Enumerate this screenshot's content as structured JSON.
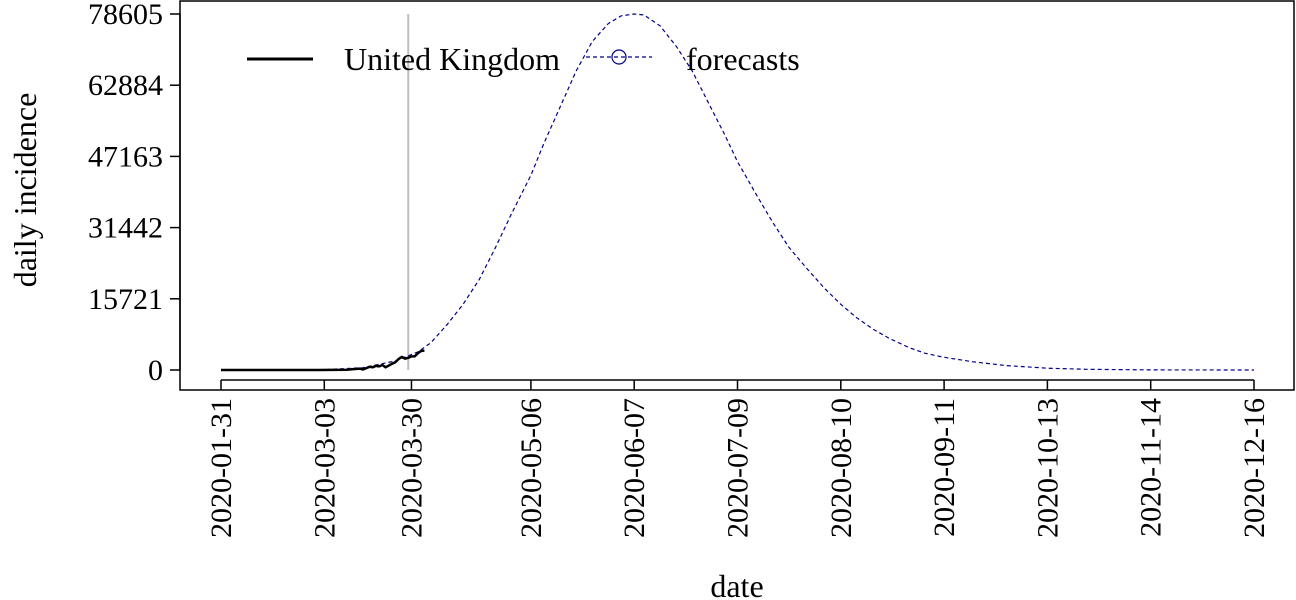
{
  "chart_data": {
    "type": "line",
    "title": "",
    "xlabel": "date",
    "ylabel": "daily incidence",
    "x_start": "2020-01-31",
    "x_end": "2020-12-16",
    "ylim": [
      0,
      78605
    ],
    "grid": false,
    "legend_position": "top-left",
    "colors": {
      "observed": "#000000",
      "forecast": "#00008b",
      "vline": "#bebebe"
    },
    "x_tick_labels": [
      "2020-01-31",
      "2020-03-03",
      "2020-03-30",
      "2020-05-06",
      "2020-06-07",
      "2020-07-09",
      "2020-08-10",
      "2020-09-11",
      "2020-10-13",
      "2020-11-14",
      "2020-12-16"
    ],
    "y_tick_labels": [
      "0",
      "15721",
      "31442",
      "47163",
      "62884",
      "78605"
    ],
    "vertical_line_date": "2020-03-29",
    "series": [
      {
        "name": "United Kingdom",
        "style": "solid",
        "points": [
          [
            "2020-01-31",
            0
          ],
          [
            "2020-02-15",
            0
          ],
          [
            "2020-03-01",
            0
          ],
          [
            "2020-03-10",
            50
          ],
          [
            "2020-03-12",
            200
          ],
          [
            "2020-03-14",
            300
          ],
          [
            "2020-03-15",
            100
          ],
          [
            "2020-03-17",
            700
          ],
          [
            "2020-03-18",
            600
          ],
          [
            "2020-03-19",
            900
          ],
          [
            "2020-03-20",
            800
          ],
          [
            "2020-03-21",
            1100
          ],
          [
            "2020-03-22",
            600
          ],
          [
            "2020-03-23",
            1000
          ],
          [
            "2020-03-24",
            1400
          ],
          [
            "2020-03-25",
            1700
          ],
          [
            "2020-03-26",
            2400
          ],
          [
            "2020-03-27",
            2900
          ],
          [
            "2020-03-28",
            2500
          ],
          [
            "2020-03-29",
            2700
          ],
          [
            "2020-03-30",
            3000
          ],
          [
            "2020-03-31",
            3000
          ],
          [
            "2020-04-01",
            3700
          ],
          [
            "2020-04-02",
            4200
          ],
          [
            "2020-04-03",
            4300
          ]
        ]
      },
      {
        "name": "forecasts",
        "style": "dashed",
        "marker": "circle-open",
        "points": [
          [
            "2020-01-31",
            0
          ],
          [
            "2020-03-01",
            0
          ],
          [
            "2020-03-15",
            500
          ],
          [
            "2020-03-25",
            2000
          ],
          [
            "2020-04-01",
            4000
          ],
          [
            "2020-04-05",
            6000
          ],
          [
            "2020-04-10",
            10000
          ],
          [
            "2020-04-15",
            14500
          ],
          [
            "2020-04-20",
            20000
          ],
          [
            "2020-04-25",
            27000
          ],
          [
            "2020-04-30",
            34500
          ],
          [
            "2020-05-06",
            43000
          ],
          [
            "2020-05-10",
            50000
          ],
          [
            "2020-05-15",
            58000
          ],
          [
            "2020-05-20",
            66000
          ],
          [
            "2020-05-25",
            72500
          ],
          [
            "2020-05-30",
            76500
          ],
          [
            "2020-06-03",
            78200
          ],
          [
            "2020-06-07",
            78605
          ],
          [
            "2020-06-10",
            78400
          ],
          [
            "2020-06-15",
            76000
          ],
          [
            "2020-06-20",
            71500
          ],
          [
            "2020-06-25",
            66000
          ],
          [
            "2020-06-30",
            59000
          ],
          [
            "2020-07-05",
            52000
          ],
          [
            "2020-07-09",
            46000
          ],
          [
            "2020-07-15",
            38500
          ],
          [
            "2020-07-20",
            32500
          ],
          [
            "2020-07-25",
            27000
          ],
          [
            "2020-07-31",
            22000
          ],
          [
            "2020-08-05",
            18000
          ],
          [
            "2020-08-10",
            14500
          ],
          [
            "2020-08-15",
            11500
          ],
          [
            "2020-08-20",
            9000
          ],
          [
            "2020-08-25",
            7000
          ],
          [
            "2020-08-31",
            5000
          ],
          [
            "2020-09-05",
            3700
          ],
          [
            "2020-09-11",
            2800
          ],
          [
            "2020-09-20",
            1800
          ],
          [
            "2020-09-30",
            1000
          ],
          [
            "2020-10-13",
            400
          ],
          [
            "2020-10-25",
            150
          ],
          [
            "2020-11-14",
            30
          ],
          [
            "2020-12-16",
            0
          ]
        ]
      }
    ]
  }
}
